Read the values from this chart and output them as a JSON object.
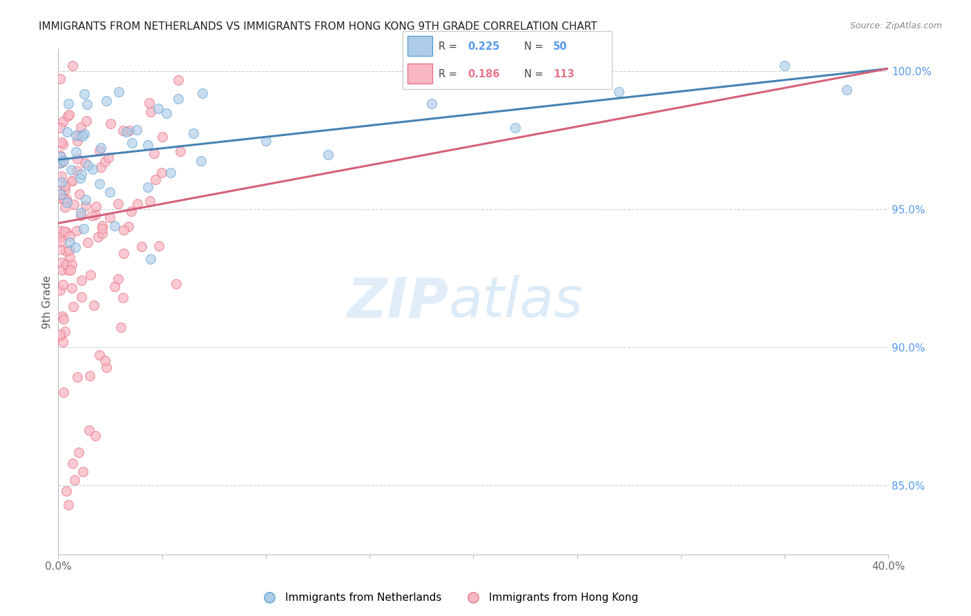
{
  "title": "IMMIGRANTS FROM NETHERLANDS VS IMMIGRANTS FROM HONG KONG 9TH GRADE CORRELATION CHART",
  "source": "Source: ZipAtlas.com",
  "xlabel_netherlands": "Immigrants from Netherlands",
  "xlabel_hongkong": "Immigrants from Hong Kong",
  "ylabel": "9th Grade",
  "xlim": [
    0.0,
    0.4
  ],
  "ylim": [
    0.825,
    1.008
  ],
  "yticks": [
    0.85,
    0.9,
    0.95,
    1.0
  ],
  "ytick_labels": [
    "85.0%",
    "90.0%",
    "95.0%",
    "100.0%"
  ],
  "xticks": [
    0.0,
    0.05,
    0.1,
    0.15,
    0.2,
    0.25,
    0.3,
    0.35,
    0.4
  ],
  "xtick_labels": [
    "0.0%",
    "",
    "",
    "",
    "",
    "",
    "",
    "",
    "40.0%"
  ],
  "netherlands_color": "#aecde8",
  "hongkong_color": "#f9b8c4",
  "netherlands_edge_color": "#5b9fd4",
  "hongkong_edge_color": "#e8768a",
  "netherlands_line_color": "#4682b4",
  "hongkong_line_color": "#d4607a",
  "background_color": "#ffffff",
  "grid_color": "#cccccc",
  "axis_color": "#bbbbbb",
  "right_tick_color": "#5599ee",
  "nl_line_x0": 0.0,
  "nl_line_y0": 0.968,
  "nl_line_x1": 0.4,
  "nl_line_y1": 1.001,
  "hk_line_x0": 0.0,
  "hk_line_y0": 0.945,
  "hk_line_x1": 0.4,
  "hk_line_y1": 1.001
}
